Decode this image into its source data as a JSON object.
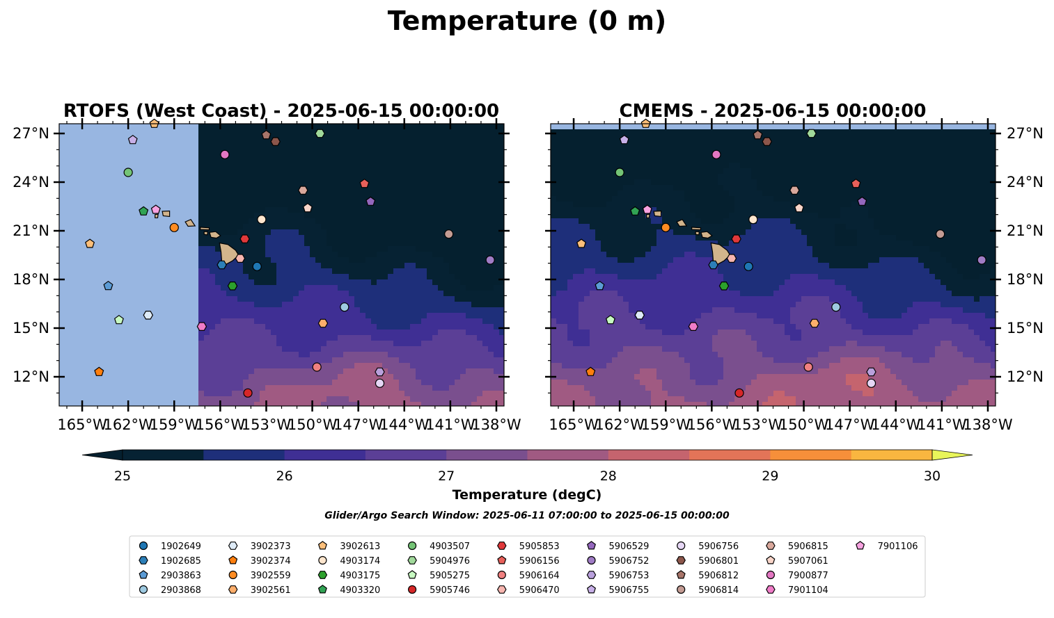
{
  "figure": {
    "suptitle": "Temperature (0 m)",
    "search_window": "Glider/Argo Search Window: 2025-06-11 07:00:00 to 2025-06-15 00:00:00"
  },
  "chart_data": [
    {
      "type": "heatmap",
      "title": "RTOFS (West Coast) - 2025-06-15 00:00:00",
      "x_range": [
        -166.5,
        -137.5
      ],
      "y_range": [
        10.2,
        27.6
      ],
      "x_ticks": [
        "165°W",
        "162°W",
        "159°W",
        "156°W",
        "153°W",
        "150°W",
        "147°W",
        "144°W",
        "141°W",
        "138°W"
      ],
      "y_ticks": [
        "27°N",
        "24°N",
        "21°N",
        "18°N",
        "15°N",
        "12°N"
      ],
      "y_tick_side": "left",
      "model_data_western_limit_lon": -157.4,
      "grid": false
    },
    {
      "type": "heatmap",
      "title": "CMEMS - 2025-06-15 00:00:00",
      "x_range": [
        -166.5,
        -137.5
      ],
      "y_range": [
        10.2,
        27.6
      ],
      "x_ticks": [
        "165°W",
        "162°W",
        "159°W",
        "156°W",
        "153°W",
        "150°W",
        "147°W",
        "144°W",
        "141°W",
        "138°W"
      ],
      "y_ticks": [
        "27°N",
        "24°N",
        "21°N",
        "18°N",
        "15°N",
        "12°N"
      ],
      "y_tick_side": "right",
      "model_data_northern_limit_lat": 27.1,
      "grid": false
    }
  ],
  "colorbar": {
    "label": "Temperature (degC)",
    "ticks": [
      "25",
      "26",
      "27",
      "28",
      "29",
      "30"
    ],
    "min": 25,
    "max": 30,
    "step": 0.5,
    "extend": "both",
    "colors": [
      "#062233",
      "#1e2f7a",
      "#3f2f94",
      "#5b3f96",
      "#7a4f8e",
      "#a05a82",
      "#c5646e",
      "#e37458",
      "#f68f3a",
      "#f9b640"
    ],
    "under_color": "#05202f",
    "over_color": "#e8f55a"
  },
  "land_color": "#d2b48c",
  "ocean_nodata_color": "#98b6e1",
  "floats": [
    {
      "id": "1902649",
      "marker": "circle",
      "color": "#1f77b4",
      "lon": -153.6,
      "lat": 18.8
    },
    {
      "id": "1902685",
      "marker": "hexagon",
      "color": "#2c7fb8",
      "lon": -155.9,
      "lat": 18.9
    },
    {
      "id": "2903863",
      "marker": "pentagon",
      "color": "#5b9bd5",
      "lon": -163.3,
      "lat": 17.6
    },
    {
      "id": "2903868",
      "marker": "circle",
      "color": "#9ecae1",
      "lon": -147.9,
      "lat": 16.3
    },
    {
      "id": "3902373",
      "marker": "hexagon",
      "color": "#deebf7",
      "lon": -160.7,
      "lat": 15.8
    },
    {
      "id": "3902374",
      "marker": "pentagon",
      "color": "#ff7f0e",
      "lon": -163.9,
      "lat": 12.3
    },
    {
      "id": "3902559",
      "marker": "circle",
      "color": "#ff8c22",
      "lon": -159.0,
      "lat": 21.2
    },
    {
      "id": "3902561",
      "marker": "hexagon",
      "color": "#fdae6b",
      "lon": -149.3,
      "lat": 15.3
    },
    {
      "id": "3902613",
      "marker": "pentagon",
      "color": "#fdbf7a",
      "lon": -164.5,
      "lat": 20.2
    },
    {
      "id": "3902613",
      "marker": "pentagon",
      "color": "#fdbf7a",
      "lon": -160.3,
      "lat": 27.6
    },
    {
      "id": "4903507",
      "marker": "circle",
      "color": "#74c476",
      "lon": -162.0,
      "lat": 24.6
    },
    {
      "id": "4903174",
      "marker": "circle",
      "color": "#fee6ce",
      "lon": -153.3,
      "lat": 21.7
    },
    {
      "id": "4903175",
      "marker": "hexagon",
      "color": "#2ca02c",
      "lon": -155.2,
      "lat": 17.6
    },
    {
      "id": "4903320",
      "marker": "pentagon",
      "color": "#31a354",
      "lon": -161.0,
      "lat": 22.2
    },
    {
      "id": "5904976",
      "marker": "hexagon",
      "color": "#a1d99b",
      "lon": -149.5,
      "lat": 27.0
    },
    {
      "id": "5905275",
      "marker": "pentagon",
      "color": "#c7f9c1",
      "lon": -162.6,
      "lat": 15.5
    },
    {
      "id": "5905746",
      "marker": "circle",
      "color": "#d62728",
      "lon": -154.2,
      "lat": 11.0
    },
    {
      "id": "5905853",
      "marker": "hexagon",
      "color": "#e0393b",
      "lon": -154.4,
      "lat": 20.5
    },
    {
      "id": "5906156",
      "marker": "pentagon",
      "color": "#e8605a",
      "lon": -146.6,
      "lat": 23.9
    },
    {
      "id": "5906164",
      "marker": "circle",
      "color": "#f08080",
      "lon": -149.7,
      "lat": 12.6
    },
    {
      "id": "5906470",
      "marker": "hexagon",
      "color": "#f7b6b0",
      "lon": -154.7,
      "lat": 19.3
    },
    {
      "id": "5906529",
      "marker": "pentagon",
      "color": "#9467bd",
      "lon": -146.2,
      "lat": 22.8
    },
    {
      "id": "5906752",
      "marker": "circle",
      "color": "#a07cc5",
      "lon": -138.4,
      "lat": 19.2
    },
    {
      "id": "5906753",
      "marker": "hexagon",
      "color": "#b9a0dc",
      "lon": -145.6,
      "lat": 12.3
    },
    {
      "id": "5906755",
      "marker": "pentagon",
      "color": "#c8b0e8",
      "lon": -161.7,
      "lat": 26.6
    },
    {
      "id": "5906756",
      "marker": "circle",
      "color": "#e6d7f5",
      "lon": -145.6,
      "lat": 11.6
    },
    {
      "id": "5906801",
      "marker": "hexagon",
      "color": "#8c564b",
      "lon": -152.4,
      "lat": 26.5
    },
    {
      "id": "5906812",
      "marker": "pentagon",
      "color": "#a8756a",
      "lon": -153.0,
      "lat": 26.9
    },
    {
      "id": "5906814",
      "marker": "circle",
      "color": "#c49c94",
      "lon": -141.1,
      "lat": 20.8
    },
    {
      "id": "5906815",
      "marker": "hexagon",
      "color": "#d9a89c",
      "lon": -150.6,
      "lat": 23.5
    },
    {
      "id": "5907061",
      "marker": "pentagon",
      "color": "#f9d5c9",
      "lon": -150.3,
      "lat": 22.4
    },
    {
      "id": "7900877",
      "marker": "circle",
      "color": "#e377c2",
      "lon": -155.7,
      "lat": 25.7
    },
    {
      "id": "7901104",
      "marker": "hexagon",
      "color": "#f07cc8",
      "lon": -157.2,
      "lat": 15.1
    },
    {
      "id": "7901106",
      "marker": "pentagon",
      "color": "#f7a2e0",
      "lon": -160.2,
      "lat": 22.3
    }
  ],
  "legend": {
    "position": "bottom-center",
    "columns": 9,
    "entries": [
      {
        "label": "1902649",
        "marker": "circle",
        "color": "#1f77b4"
      },
      {
        "label": "1902685",
        "marker": "hexagon",
        "color": "#2c7fb8"
      },
      {
        "label": "2903863",
        "marker": "pentagon",
        "color": "#5b9bd5"
      },
      {
        "label": "2903868",
        "marker": "circle",
        "color": "#9ecae1"
      },
      {
        "label": "3902373",
        "marker": "hexagon",
        "color": "#deebf7"
      },
      {
        "label": "3902374",
        "marker": "pentagon",
        "color": "#ff7f0e"
      },
      {
        "label": "3902559",
        "marker": "circle",
        "color": "#ff8c22"
      },
      {
        "label": "3902561",
        "marker": "hexagon",
        "color": "#fdae6b"
      },
      {
        "label": "3902613",
        "marker": "pentagon",
        "color": "#fdbf7a"
      },
      {
        "label": "4903174",
        "marker": "circle",
        "color": "#fee6ce"
      },
      {
        "label": "4903175",
        "marker": "hexagon",
        "color": "#2ca02c"
      },
      {
        "label": "4903320",
        "marker": "pentagon",
        "color": "#31a354"
      },
      {
        "label": "4903507",
        "marker": "circle",
        "color": "#74c476"
      },
      {
        "label": "5904976",
        "marker": "hexagon",
        "color": "#a1d99b"
      },
      {
        "label": "5905275",
        "marker": "pentagon",
        "color": "#c7f9c1"
      },
      {
        "label": "5905746",
        "marker": "circle",
        "color": "#d62728"
      },
      {
        "label": "5905853",
        "marker": "hexagon",
        "color": "#e0393b"
      },
      {
        "label": "5906156",
        "marker": "pentagon",
        "color": "#e8605a"
      },
      {
        "label": "5906164",
        "marker": "circle",
        "color": "#f08080"
      },
      {
        "label": "5906470",
        "marker": "hexagon",
        "color": "#f7b6b0"
      },
      {
        "label": "5906529",
        "marker": "pentagon",
        "color": "#9467bd"
      },
      {
        "label": "5906752",
        "marker": "circle",
        "color": "#a07cc5"
      },
      {
        "label": "5906753",
        "marker": "hexagon",
        "color": "#b9a0dc"
      },
      {
        "label": "5906755",
        "marker": "pentagon",
        "color": "#c8b0e8"
      },
      {
        "label": "5906756",
        "marker": "circle",
        "color": "#e6d7f5"
      },
      {
        "label": "5906801",
        "marker": "hexagon",
        "color": "#8c564b"
      },
      {
        "label": "5906812",
        "marker": "pentagon",
        "color": "#a8756a"
      },
      {
        "label": "5906814",
        "marker": "circle",
        "color": "#c49c94"
      },
      {
        "label": "5906815",
        "marker": "hexagon",
        "color": "#d9a89c"
      },
      {
        "label": "5907061",
        "marker": "pentagon",
        "color": "#f9d5c9"
      },
      {
        "label": "7900877",
        "marker": "circle",
        "color": "#e377c2"
      },
      {
        "label": "7901104",
        "marker": "hexagon",
        "color": "#f07cc8"
      },
      {
        "label": "7901106",
        "marker": "pentagon",
        "color": "#f7a2e0"
      }
    ]
  }
}
